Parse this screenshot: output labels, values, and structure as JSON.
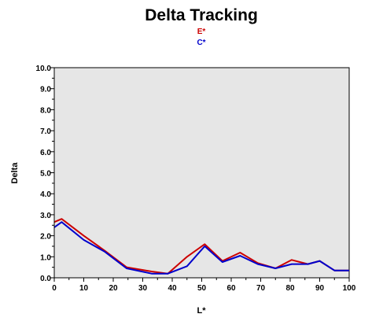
{
  "chart_data": {
    "type": "line",
    "title": "Delta Tracking",
    "xlabel": "L*",
    "ylabel": "Delta",
    "xlim": [
      0,
      100
    ],
    "ylim": [
      0,
      10
    ],
    "x_ticks": [
      "0",
      "10",
      "20",
      "30",
      "40",
      "50",
      "60",
      "70",
      "80",
      "90",
      "100"
    ],
    "y_ticks": [
      "0.0",
      "1.0",
      "2.0",
      "3.0",
      "4.0",
      "5.0",
      "6.0",
      "7.0",
      "8.0",
      "9.0",
      "10.0"
    ],
    "grid": false,
    "legend_position": "top-center",
    "plot_background": "#e6e6e6",
    "series": [
      {
        "name": "E*",
        "color": "#cc0000",
        "points": [
          [
            0,
            2.65
          ],
          [
            2.5,
            2.8
          ],
          [
            10,
            2.0
          ],
          [
            17,
            1.3
          ],
          [
            24.5,
            0.5
          ],
          [
            33,
            0.3
          ],
          [
            38.5,
            0.2
          ],
          [
            45,
            1.0
          ],
          [
            51,
            1.6
          ],
          [
            57,
            0.8
          ],
          [
            63,
            1.2
          ],
          [
            69,
            0.7
          ],
          [
            75,
            0.45
          ],
          [
            80.5,
            0.85
          ],
          [
            86,
            0.65
          ],
          [
            90,
            0.8
          ],
          [
            95,
            0.35
          ],
          [
            100,
            0.35
          ]
        ]
      },
      {
        "name": "C*",
        "color": "#0000cc",
        "points": [
          [
            0,
            2.4
          ],
          [
            2.5,
            2.65
          ],
          [
            10,
            1.8
          ],
          [
            17,
            1.25
          ],
          [
            24.5,
            0.45
          ],
          [
            33,
            0.2
          ],
          [
            38.5,
            0.2
          ],
          [
            45,
            0.55
          ],
          [
            51,
            1.5
          ],
          [
            57,
            0.75
          ],
          [
            63,
            1.05
          ],
          [
            69,
            0.65
          ],
          [
            75,
            0.45
          ],
          [
            80.5,
            0.65
          ],
          [
            86,
            0.65
          ],
          [
            90,
            0.8
          ],
          [
            95,
            0.35
          ],
          [
            100,
            0.35
          ]
        ]
      }
    ]
  }
}
